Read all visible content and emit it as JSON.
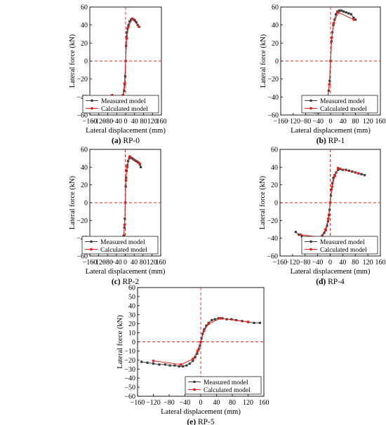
{
  "colors": {
    "measured": "#3c3c3c",
    "calculated": "#e8201c",
    "zero_line": "#e8201c",
    "axis": "#000000"
  },
  "chart_data": [
    {
      "type": "line",
      "caption_letter": "(a)",
      "caption_name": "RP-0",
      "xlabel": "Lateral displacement (mm)",
      "ylabel": "Lateral force (kN)",
      "xlim": [
        -160,
        160
      ],
      "ylim": [
        -60,
        60
      ],
      "x_ticks": [
        -160,
        -120,
        -80,
        -40,
        0,
        40,
        80,
        120,
        160
      ],
      "y_ticks": [
        -60,
        -40,
        -20,
        0,
        20,
        40,
        60
      ],
      "legend_position": "bottom-right",
      "grid": false,
      "series": [
        {
          "name": "Measured model",
          "marker": "square",
          "x": [
            -65,
            -58,
            -52,
            -45,
            -38,
            -30,
            -22,
            -16,
            -11,
            -7,
            -4,
            -2,
            0,
            2,
            4,
            6,
            9,
            13,
            18,
            24,
            30,
            36,
            42,
            48,
            54,
            60
          ],
          "y": [
            -39,
            -42,
            -43,
            -44,
            -45,
            -46,
            -44,
            -42,
            -38,
            -33,
            -26,
            -17,
            0,
            17,
            27,
            32,
            36,
            40,
            44,
            46,
            47,
            46,
            45,
            43,
            40,
            38
          ]
        },
        {
          "name": "Calculated model",
          "marker": "circle",
          "x": [
            -60,
            -30,
            -12,
            -5,
            0,
            5,
            12,
            30,
            60
          ],
          "y": [
            -38,
            -46,
            -38,
            -25,
            0,
            25,
            38,
            47,
            38
          ]
        }
      ]
    },
    {
      "type": "line",
      "caption_letter": "(b)",
      "caption_name": "RP-1",
      "xlabel": "Lateral displacement (mm)",
      "ylabel": "Lateral force (kN)",
      "xlim": [
        -160,
        160
      ],
      "ylim": [
        -60,
        60
      ],
      "x_ticks": [
        -160,
        -120,
        -80,
        -40,
        0,
        40,
        80,
        120,
        160
      ],
      "y_ticks": [
        -60,
        -40,
        -20,
        0,
        20,
        40,
        60
      ],
      "legend_position": "bottom-right",
      "grid": false,
      "series": [
        {
          "name": "Measured model",
          "marker": "square",
          "x": [
            -80,
            -72,
            -65,
            -58,
            -50,
            -42,
            -35,
            -28,
            -22,
            -17,
            -13,
            -9,
            -6,
            -3,
            0,
            3,
            6,
            9,
            13,
            17,
            22,
            28,
            35,
            42,
            50,
            58,
            66,
            74,
            80
          ],
          "y": [
            -50,
            -54,
            -56,
            -56,
            -57,
            -57,
            -57,
            -56,
            -55,
            -52,
            -47,
            -41,
            -33,
            -22,
            0,
            22,
            32,
            40,
            46,
            52,
            55,
            56,
            56,
            55,
            54,
            53,
            52,
            48,
            46
          ]
        },
        {
          "name": "Calculated model",
          "marker": "circle",
          "x": [
            -75,
            -25,
            -10,
            -4,
            0,
            4,
            10,
            25,
            75
          ],
          "y": [
            -46,
            -54,
            -42,
            -26,
            0,
            26,
            42,
            54,
            46
          ]
        }
      ]
    },
    {
      "type": "line",
      "caption_letter": "(c)",
      "caption_name": "RP-2",
      "xlabel": "Lateral displacement (mm)",
      "ylabel": "Lateral force (kN)",
      "xlim": [
        -160,
        160
      ],
      "ylim": [
        -60,
        60
      ],
      "x_ticks": [
        -160,
        -120,
        -80,
        -40,
        0,
        40,
        80,
        120,
        160
      ],
      "y_ticks": [
        -60,
        -40,
        -20,
        0,
        20,
        40,
        60
      ],
      "legend_position": "bottom-right",
      "grid": false,
      "series": [
        {
          "name": "Measured model",
          "marker": "square",
          "x": [
            -70,
            -64,
            -58,
            -52,
            -46,
            -40,
            -34,
            -28,
            -23,
            -18,
            -14,
            -10,
            -7,
            -4,
            -2,
            0,
            2,
            4,
            6,
            9,
            13,
            18,
            24,
            30,
            36,
            42,
            48,
            54,
            60,
            66,
            70
          ],
          "y": [
            -44,
            -46,
            -47,
            -48,
            -48,
            -49,
            -49,
            -50,
            -50,
            -49,
            -47,
            -43,
            -37,
            -28,
            -18,
            0,
            18,
            28,
            36,
            42,
            47,
            50,
            51,
            50,
            49,
            48,
            47,
            46,
            45,
            43,
            40
          ]
        },
        {
          "name": "Calculated model",
          "marker": "circle",
          "x": [
            -65,
            -20,
            -8,
            -3,
            0,
            3,
            8,
            20,
            65
          ],
          "y": [
            -45,
            -52,
            -40,
            -25,
            0,
            25,
            40,
            52,
            44
          ]
        }
      ]
    },
    {
      "type": "line",
      "caption_letter": "(d)",
      "caption_name": "RP-4",
      "xlabel": "Lateral displacement (mm)",
      "ylabel": "Lateral force (kN)",
      "xlim": [
        -160,
        160
      ],
      "ylim": [
        -60,
        60
      ],
      "x_ticks": [
        -160,
        -120,
        -80,
        -40,
        0,
        40,
        80,
        120,
        160
      ],
      "y_ticks": [
        -60,
        -40,
        -20,
        0,
        20,
        40,
        60
      ],
      "legend_position": "bottom-right",
      "grid": false,
      "series": [
        {
          "name": "Measured model",
          "marker": "square",
          "x": [
            -110,
            -100,
            -90,
            -80,
            -70,
            -60,
            -50,
            -40,
            -32,
            -25,
            -19,
            -14,
            -10,
            -7,
            -4,
            -2,
            0,
            2,
            4,
            7,
            10,
            14,
            19,
            25,
            32,
            40,
            50,
            60,
            70,
            80,
            90,
            100,
            110
          ],
          "y": [
            -33,
            -36,
            -38,
            -39,
            -39,
            -40,
            -40,
            -40,
            -39,
            -37,
            -34,
            -31,
            -26,
            -21,
            -14,
            -8,
            0,
            8,
            15,
            22,
            28,
            31,
            34,
            37,
            38,
            37,
            37,
            36,
            35,
            34,
            33,
            32,
            31
          ]
        },
        {
          "name": "Calculated model",
          "marker": "circle",
          "x": [
            -95,
            -30,
            -15,
            -6,
            0,
            6,
            15,
            25,
            90
          ],
          "y": [
            -36,
            -39,
            -30,
            -18,
            0,
            18,
            30,
            39,
            33
          ]
        }
      ]
    },
    {
      "type": "line",
      "caption_letter": "(e)",
      "caption_name": "RP-5",
      "xlabel": "Lateral displacement (mm)",
      "ylabel": "Lateral force (kN)",
      "xlim": [
        -160,
        160
      ],
      "ylim": [
        -60,
        60
      ],
      "x_ticks": [
        -160,
        -120,
        -80,
        -40,
        0,
        40,
        80,
        120,
        160
      ],
      "y_ticks": [
        -60,
        -50,
        -40,
        -30,
        -20,
        -10,
        0,
        10,
        20,
        30,
        40,
        50,
        60
      ],
      "legend_position": "bottom-right",
      "grid": false,
      "series": [
        {
          "name": "Measured model",
          "marker": "square",
          "x": [
            -150,
            -135,
            -120,
            -105,
            -90,
            -78,
            -66,
            -55,
            -45,
            -36,
            -28,
            -20,
            -14,
            -9,
            -5,
            -2,
            0,
            2,
            5,
            9,
            14,
            20,
            28,
            36,
            45,
            55,
            66,
            78,
            90,
            105,
            120,
            135,
            150
          ],
          "y": [
            -22,
            -23,
            -24,
            -25,
            -25,
            -26,
            -26,
            -27,
            -27,
            -26,
            -24,
            -21,
            -17,
            -13,
            -8,
            -4,
            0,
            4,
            9,
            14,
            18,
            21,
            24,
            25,
            26,
            26,
            25,
            25,
            24,
            23,
            22,
            21,
            21
          ]
        },
        {
          "name": "Calculated model",
          "marker": "circle",
          "x": [
            -120,
            -50,
            -20,
            -8,
            0,
            8,
            20,
            50,
            120
          ],
          "y": [
            -21,
            -25,
            -19,
            -10,
            0,
            12,
            20,
            26,
            22
          ]
        }
      ]
    }
  ]
}
